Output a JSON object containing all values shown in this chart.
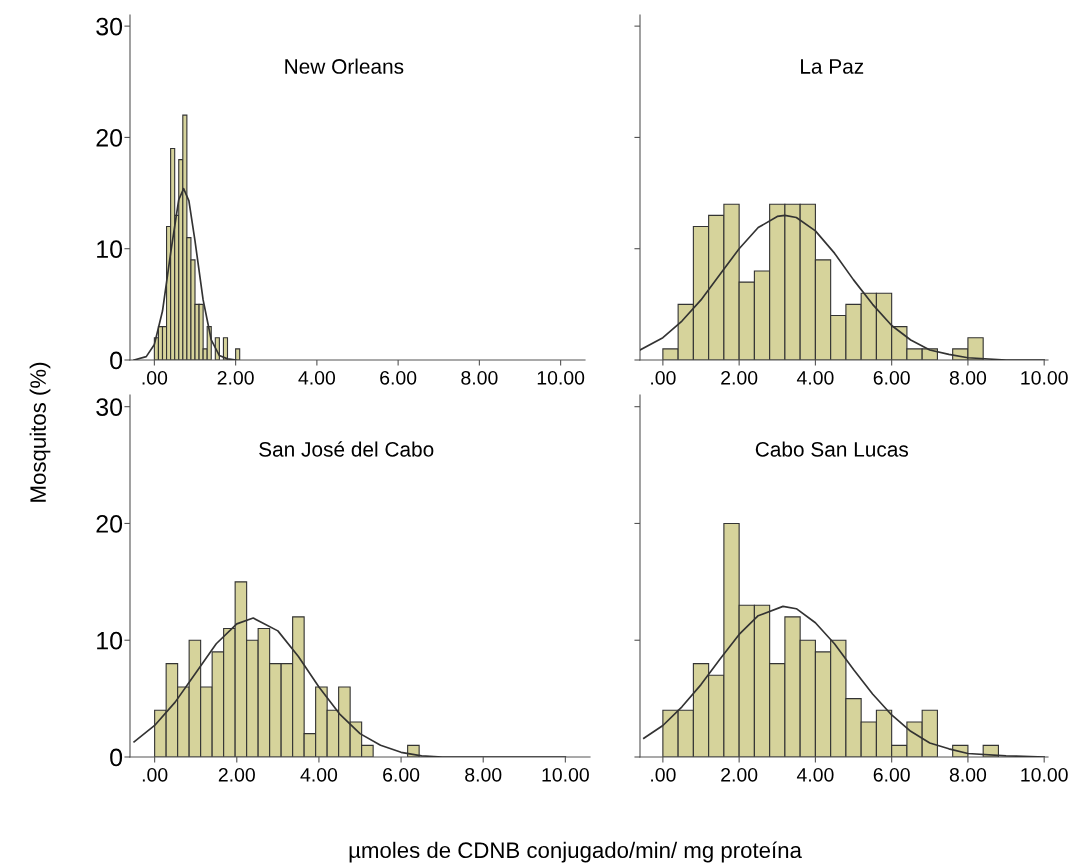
{
  "chart_data": [
    {
      "type": "histogram",
      "title": "New Orleans",
      "ylabel": "Mosquitos (%)",
      "color": "#d6d39b",
      "bins": [
        0,
        0.1,
        0.2,
        0.3,
        0.4,
        0.5,
        0.6,
        0.7,
        0.8,
        0.9,
        1.0,
        1.1,
        1.2,
        1.3,
        1.4,
        1.5,
        1.6,
        1.7,
        1.8,
        1.9,
        2.0,
        2.1
      ],
      "values": [
        2,
        3,
        3,
        12,
        19,
        13,
        18,
        22,
        11,
        9,
        5,
        5,
        1,
        3,
        0,
        2,
        0,
        2,
        0,
        0,
        1
      ],
      "series": [
        {
          "type": "line",
          "color": "#333333",
          "x": [
            -0.5,
            -0.2,
            0,
            0.2,
            0.4,
            0.6,
            0.72,
            0.85,
            1.0,
            1.2,
            1.4,
            1.6,
            1.8,
            2.0
          ],
          "values": [
            0,
            0.3,
            1.4,
            4.4,
            9.6,
            14.4,
            15.4,
            14.3,
            10.7,
            5.4,
            1.8,
            0.4,
            0.1,
            0
          ]
        }
      ],
      "xlim": [
        -0.6,
        10.6
      ],
      "ylim": [
        0,
        31
      ],
      "xticks": [
        {
          "value": 0,
          "label": ".00"
        },
        {
          "value": 2,
          "label": "2.00"
        },
        {
          "value": 4,
          "label": "4.00"
        },
        {
          "value": 6,
          "label": "6.00"
        },
        {
          "value": 8,
          "label": "8.00"
        },
        {
          "value": 10,
          "label": "10.00"
        }
      ],
      "yticks": [
        0,
        10,
        20,
        30
      ]
    },
    {
      "type": "histogram",
      "title": "La Paz",
      "color": "#d6d39b",
      "bins": [
        0,
        0.4,
        0.8,
        1.2,
        1.6,
        2.0,
        2.4,
        2.8,
        3.2,
        3.6,
        4.0,
        4.4,
        4.8,
        5.2,
        5.6,
        6.0,
        6.4,
        6.8,
        7.2,
        7.6,
        8.0,
        8.4
      ],
      "values": [
        1,
        5,
        12,
        13,
        14,
        7,
        8,
        14,
        14,
        14,
        9,
        4,
        5,
        6,
        6,
        3,
        1,
        1,
        0,
        1,
        2
      ],
      "series": [
        {
          "type": "line",
          "color": "#333333",
          "x": [
            -0.6,
            0,
            0.5,
            1,
            1.5,
            2,
            2.5,
            3,
            3.2,
            3.5,
            4,
            4.5,
            5,
            5.5,
            6,
            6.5,
            7,
            7.5,
            8,
            9,
            10
          ],
          "values": [
            0.9,
            2.0,
            3.5,
            5.4,
            7.7,
            10.0,
            11.9,
            12.9,
            13.0,
            12.8,
            11.6,
            9.6,
            7.2,
            5.0,
            3.1,
            1.8,
            0.9,
            0.5,
            0.2,
            0,
            0
          ]
        }
      ],
      "xlim": [
        -0.6,
        10.1
      ],
      "ylim": [
        0,
        31
      ],
      "xticks": [
        {
          "value": 0,
          "label": ".00"
        },
        {
          "value": 2,
          "label": "2.00"
        },
        {
          "value": 4,
          "label": "4.00"
        },
        {
          "value": 6,
          "label": "6.00"
        },
        {
          "value": 8,
          "label": "8.00"
        },
        {
          "value": 10,
          "label": "10.00"
        }
      ],
      "yticks": [
        0,
        10,
        20,
        30
      ],
      "tick_labels": "x"
    },
    {
      "type": "histogram",
      "title": "San José del Cabo",
      "color": "#d6d39b",
      "bins": [
        0,
        0.28,
        0.56,
        0.84,
        1.12,
        1.4,
        1.68,
        1.96,
        2.24,
        2.52,
        2.8,
        3.08,
        3.36,
        3.64,
        3.92,
        4.2,
        4.48,
        4.76,
        5.04,
        5.32,
        5.6,
        5.88,
        6.16,
        6.44
      ],
      "values": [
        4,
        8,
        6,
        10,
        6,
        9,
        11,
        15,
        10,
        11,
        8,
        8,
        12,
        2,
        6,
        4,
        6,
        3,
        1,
        0,
        0,
        0,
        1
      ],
      "series": [
        {
          "type": "line",
          "color": "#333333",
          "x": [
            -0.5,
            0,
            0.5,
            1,
            1.5,
            2,
            2.4,
            3,
            3.5,
            4,
            4.5,
            5,
            5.5,
            6,
            6.5,
            7,
            8,
            9,
            10
          ],
          "values": [
            1.3,
            2.7,
            4.7,
            7.2,
            9.7,
            11.4,
            11.9,
            10.8,
            8.6,
            6.0,
            3.7,
            2.0,
            1.0,
            0.4,
            0.1,
            0,
            0,
            0,
            0
          ]
        }
      ],
      "xlim": [
        -0.6,
        10.6
      ],
      "ylim": [
        0,
        31
      ],
      "xticks": [
        {
          "value": 0,
          "label": ".00"
        },
        {
          "value": 2,
          "label": "2.00"
        },
        {
          "value": 4,
          "label": "4.00"
        },
        {
          "value": 6,
          "label": "6.00"
        },
        {
          "value": 8,
          "label": "8.00"
        },
        {
          "value": 10,
          "label": "10.00"
        }
      ],
      "yticks": [
        0,
        10,
        20,
        30
      ]
    },
    {
      "type": "histogram",
      "title": "Cabo San Lucas",
      "xlabel": "µmoles de CDNB conjugado/min/ mg proteína",
      "color": "#d6d39b",
      "bins": [
        0,
        0.4,
        0.8,
        1.2,
        1.6,
        2.0,
        2.4,
        2.8,
        3.2,
        3.6,
        4.0,
        4.4,
        4.8,
        5.2,
        5.6,
        6.0,
        6.4,
        6.8,
        7.2,
        7.6,
        8.0,
        8.4,
        8.8
      ],
      "values": [
        4,
        4,
        8,
        7,
        20,
        13,
        13,
        8,
        12,
        10,
        9,
        10,
        5,
        3,
        4,
        1,
        3,
        4,
        0,
        1,
        0,
        1
      ],
      "series": [
        {
          "type": "line",
          "color": "#333333",
          "x": [
            -0.5,
            0,
            0.5,
            1,
            1.5,
            2,
            2.5,
            3.15,
            3.5,
            4,
            4.5,
            5,
            5.5,
            6,
            6.5,
            7,
            7.5,
            8,
            9,
            10
          ],
          "values": [
            1.6,
            2.7,
            4.3,
            6.2,
            8.4,
            10.5,
            12.1,
            12.9,
            12.7,
            11.5,
            9.7,
            7.5,
            5.4,
            3.6,
            2.2,
            1.2,
            0.7,
            0.3,
            0.1,
            0
          ]
        }
      ],
      "xlim": [
        -0.6,
        10.1
      ],
      "ylim": [
        0,
        31
      ],
      "xticks": [
        {
          "value": 0,
          "label": ".00"
        },
        {
          "value": 2,
          "label": "2.00"
        },
        {
          "value": 4,
          "label": "4.00"
        },
        {
          "value": 6,
          "label": "6.00"
        },
        {
          "value": 8,
          "label": "8.00"
        },
        {
          "value": 10,
          "label": "10.00"
        }
      ],
      "yticks": [
        0,
        10,
        20,
        30
      ],
      "tick_labels": "x"
    }
  ]
}
